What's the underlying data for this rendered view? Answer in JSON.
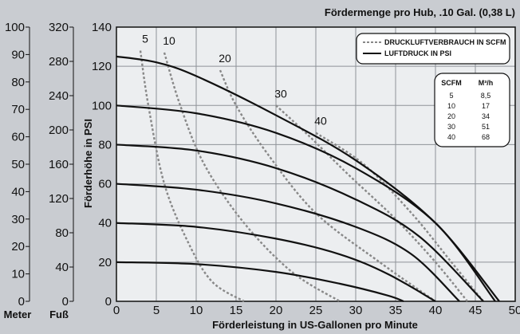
{
  "header": {
    "title": "Fördermenge pro Hub, .10 Gal. (0,38 L)"
  },
  "chart_data": {
    "type": "line",
    "title": "Fördermenge pro Hub, .10 Gal. (0,38 L)",
    "xlabel": "Förderleistung in US-Gallonen pro Minute",
    "ylabel": "Förderhöhe in PSI",
    "xlim": [
      0,
      50
    ],
    "ylim": [
      0,
      140
    ],
    "x_ticks": [
      "0",
      "5",
      "10",
      "15",
      "20",
      "25",
      "30",
      "35",
      "40",
      "45",
      "50"
    ],
    "y_ticks": [
      "0",
      "20",
      "40",
      "60",
      "80",
      "100",
      "120",
      "140"
    ],
    "secondary_axes": [
      {
        "label": "Meter",
        "ticks": [
          "0",
          "10",
          "20",
          "30",
          "40",
          "50",
          "60",
          "70",
          "80",
          "90",
          "100"
        ],
        "range": [
          0,
          100
        ]
      },
      {
        "label": "Fuß",
        "ticks": [
          "0",
          "40",
          "80",
          "120",
          "160",
          "200",
          "240",
          "280",
          "320"
        ],
        "range": [
          0,
          320
        ]
      }
    ],
    "legend": {
      "position": "top-right",
      "entries": [
        {
          "label": "DRUCKLUFTVERBRAUCH IN SCFM",
          "style": "dotted"
        },
        {
          "label": "LUFTDRUCK IN PSI",
          "style": "solid"
        }
      ]
    },
    "conversion_table": {
      "headers": [
        "SCFM",
        "M³/h"
      ],
      "rows": [
        [
          "5",
          "8,5"
        ],
        [
          "10",
          "17"
        ],
        [
          "20",
          "34"
        ],
        [
          "30",
          "51"
        ],
        [
          "40",
          "68"
        ]
      ]
    },
    "series": [
      {
        "name": "20",
        "style": "solid",
        "x": [
          0,
          10,
          20,
          28,
          34,
          36
        ],
        "y": [
          20,
          19,
          15,
          9,
          3,
          0
        ]
      },
      {
        "name": "40",
        "style": "solid",
        "x": [
          0,
          10,
          20,
          28,
          34,
          40
        ],
        "y": [
          40,
          38,
          32,
          24,
          14,
          0
        ]
      },
      {
        "name": "60",
        "style": "solid",
        "x": [
          0,
          10,
          20,
          30,
          37,
          43
        ],
        "y": [
          60,
          57,
          50,
          38,
          24,
          0
        ]
      },
      {
        "name": "80",
        "style": "solid",
        "x": [
          0,
          10,
          20,
          30,
          38,
          46
        ],
        "y": [
          80,
          77,
          68,
          52,
          33,
          0
        ]
      },
      {
        "name": "100",
        "style": "solid",
        "x": [
          0,
          10,
          20,
          30,
          40,
          47.5
        ],
        "y": [
          100,
          96,
          86,
          68,
          40,
          0
        ]
      },
      {
        "name": "125",
        "style": "solid",
        "x": [
          0,
          5,
          10,
          20,
          30,
          40,
          48
        ],
        "y": [
          125,
          122,
          115,
          95,
          72,
          40,
          0
        ]
      }
    ],
    "air_consumption_curves": [
      {
        "label": "5",
        "style": "dotted",
        "x": [
          3,
          4,
          6,
          9,
          12,
          16
        ],
        "y": [
          128,
          100,
          60,
          30,
          10,
          0
        ]
      },
      {
        "label": "10",
        "style": "dotted",
        "x": [
          6,
          8,
          11,
          16,
          22,
          28
        ],
        "y": [
          127,
          100,
          70,
          40,
          15,
          0
        ]
      },
      {
        "label": "20",
        "style": "dotted",
        "x": [
          13,
          15,
          19,
          25,
          33,
          40
        ],
        "y": [
          118,
          100,
          75,
          45,
          20,
          0
        ]
      },
      {
        "label": "30",
        "style": "dotted",
        "x": [
          20,
          24,
          29,
          35,
          40,
          44
        ],
        "y": [
          100,
          85,
          65,
          42,
          20,
          0
        ]
      },
      {
        "label": "40",
        "style": "dotted",
        "x": [
          25,
          31,
          37,
          42,
          46
        ],
        "y": [
          86,
          70,
          45,
          20,
          0
        ]
      }
    ],
    "grid": true
  }
}
